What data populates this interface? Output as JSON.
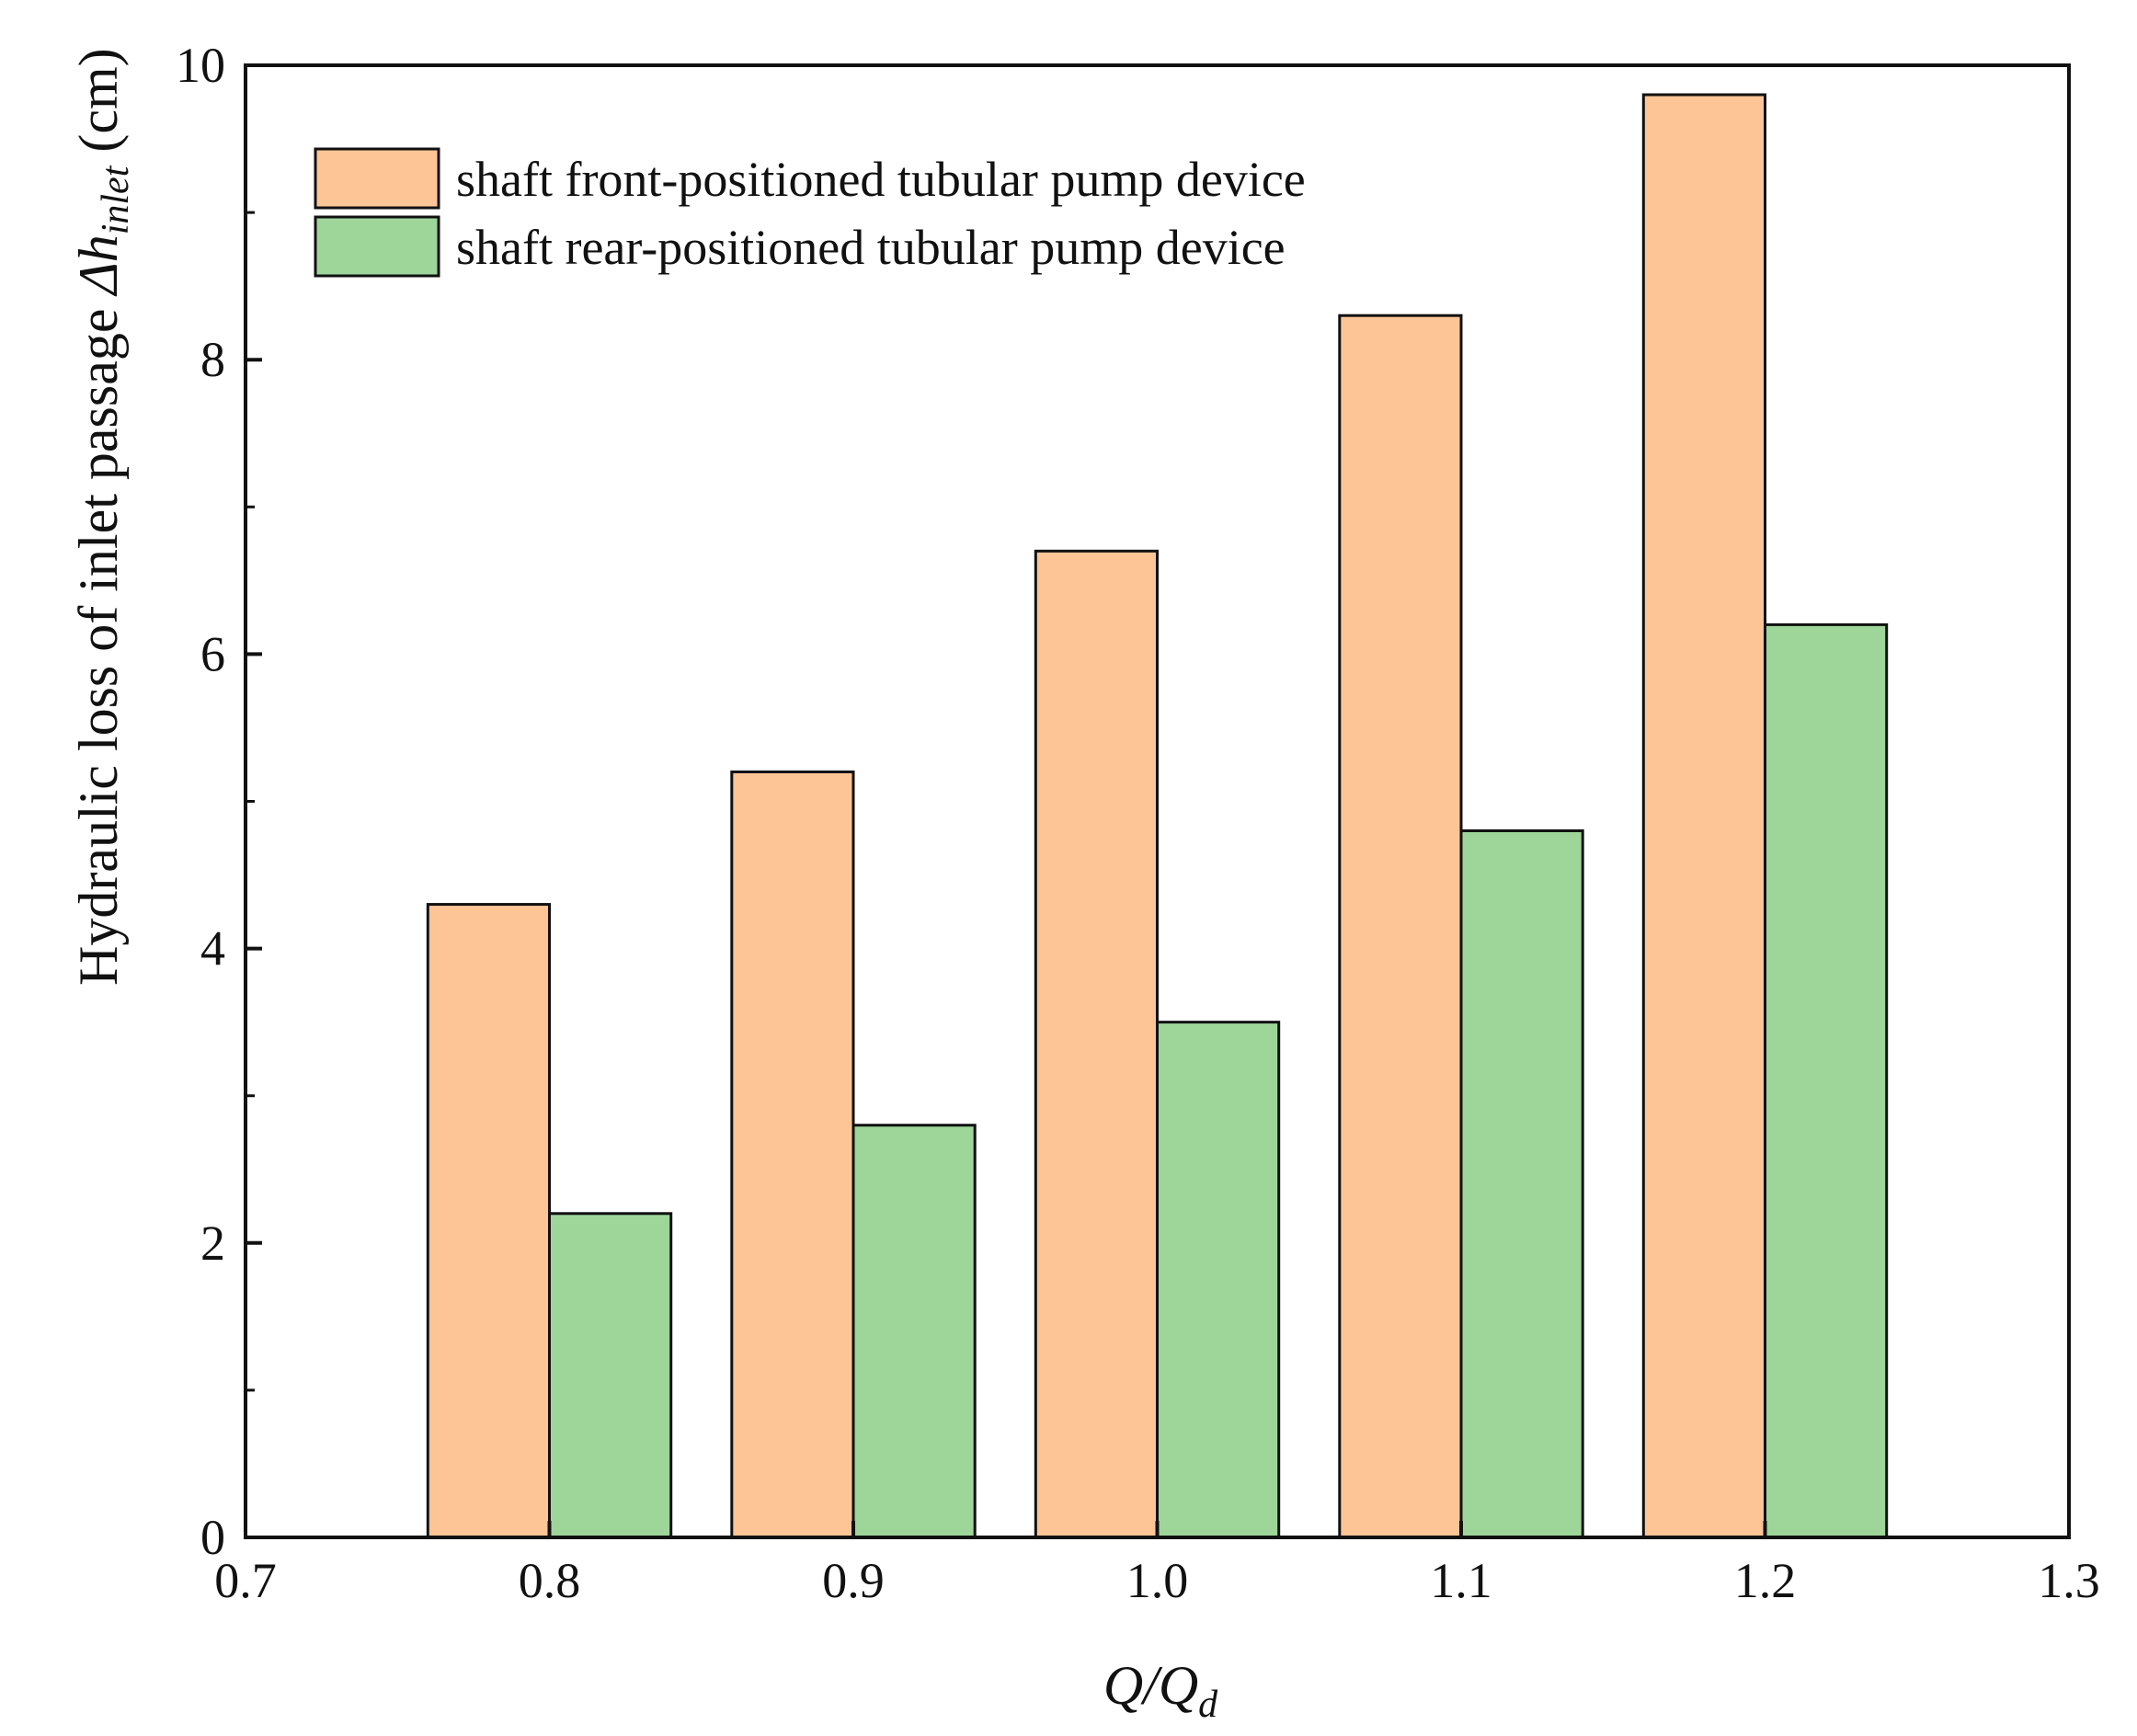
{
  "chart_data": {
    "type": "bar",
    "xlabel": {
      "main": "Q/Q",
      "sub": "d"
    },
    "ylabel": {
      "main": "Hydraulic loss of inlet passage ",
      "symbol": "Δh",
      "sub": "inlet",
      "unit": " (cm)"
    },
    "x": [
      0.8,
      0.9,
      1.0,
      1.1,
      1.2
    ],
    "xlim": [
      0.7,
      1.3
    ],
    "ylim": [
      0,
      10
    ],
    "xticks": [
      "0.7",
      "0.8",
      "0.9",
      "1.0",
      "1.1",
      "1.2",
      "1.3"
    ],
    "yticks": [
      "0",
      "2",
      "4",
      "6",
      "8",
      "10"
    ],
    "yminor": [
      1,
      3,
      5,
      7,
      9
    ],
    "grid": false,
    "legend_position": "top-left",
    "series": [
      {
        "name": "shaft front-positioned tubular pump device",
        "values": [
          4.3,
          5.2,
          6.7,
          8.3,
          9.8
        ],
        "color": "#FDC596"
      },
      {
        "name": "shaft rear-positioned tubular pump device",
        "values": [
          2.2,
          2.8,
          3.5,
          4.8,
          6.2
        ],
        "color": "#9ED69A"
      }
    ]
  }
}
